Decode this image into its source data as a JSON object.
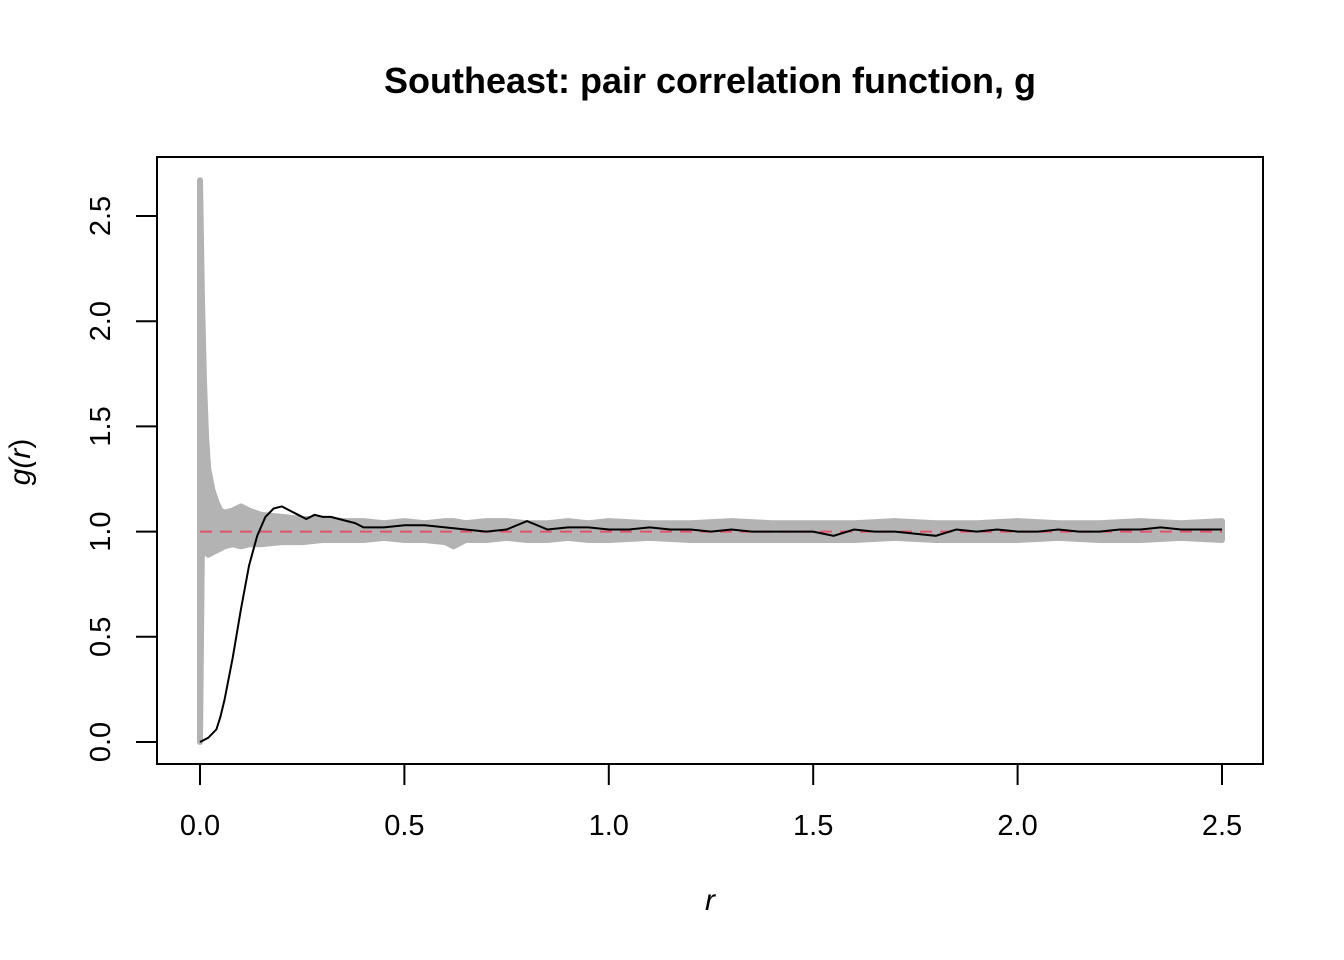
{
  "chart_data": {
    "type": "line",
    "title": "Southeast: pair correlation function, g",
    "xlabel_text": "r",
    "ylabel_prefix": "g(",
    "ylabel_var": "r",
    "ylabel_suffix": ")",
    "xlim": [
      0,
      2.5
    ],
    "ylim": [
      0,
      2.6
    ],
    "x_ticks": [
      "0.0",
      "0.5",
      "1.0",
      "1.5",
      "2.0",
      "2.5"
    ],
    "y_ticks": [
      "0.0",
      "0.5",
      "1.0",
      "1.5",
      "2.0",
      "2.5"
    ],
    "grid": false,
    "legend": "none",
    "colors": {
      "envelope": "#b3b3b3",
      "observed": "#000000",
      "theoretical": "#df536b"
    },
    "series": [
      {
        "key": "envelope",
        "style": "band",
        "x": [
          0.0,
          0.005,
          0.01,
          0.015,
          0.02,
          0.03,
          0.04,
          0.05,
          0.06,
          0.08,
          0.1,
          0.12,
          0.15,
          0.2,
          0.25,
          0.3,
          0.35,
          0.4,
          0.45,
          0.5,
          0.55,
          0.6,
          0.62,
          0.65,
          0.7,
          0.75,
          0.8,
          0.85,
          0.9,
          0.95,
          1.0,
          1.1,
          1.2,
          1.3,
          1.4,
          1.5,
          1.6,
          1.7,
          1.8,
          1.9,
          2.0,
          2.1,
          2.2,
          2.3,
          2.4,
          2.5
        ],
        "upper": [
          2.67,
          2.1,
          1.7,
          1.45,
          1.3,
          1.2,
          1.14,
          1.1,
          1.09,
          1.1,
          1.12,
          1.1,
          1.08,
          1.07,
          1.06,
          1.06,
          1.05,
          1.05,
          1.04,
          1.05,
          1.04,
          1.05,
          1.05,
          1.04,
          1.05,
          1.05,
          1.04,
          1.04,
          1.05,
          1.04,
          1.05,
          1.04,
          1.04,
          1.05,
          1.04,
          1.04,
          1.04,
          1.05,
          1.04,
          1.04,
          1.05,
          1.04,
          1.04,
          1.05,
          1.04,
          1.05
        ],
        "lower": [
          0.0,
          0.98,
          0.92,
          0.9,
          0.89,
          0.9,
          0.91,
          0.92,
          0.93,
          0.94,
          0.93,
          0.94,
          0.94,
          0.95,
          0.95,
          0.96,
          0.96,
          0.96,
          0.97,
          0.96,
          0.96,
          0.95,
          0.93,
          0.96,
          0.96,
          0.97,
          0.96,
          0.96,
          0.97,
          0.96,
          0.96,
          0.97,
          0.96,
          0.96,
          0.96,
          0.96,
          0.96,
          0.97,
          0.96,
          0.96,
          0.96,
          0.97,
          0.96,
          0.96,
          0.97,
          0.96
        ]
      },
      {
        "key": "theoretical",
        "style": "dashed",
        "x": [
          0.0,
          2.5
        ],
        "y": [
          1.0,
          1.0
        ]
      },
      {
        "key": "observed",
        "style": "solid",
        "x": [
          0.0,
          0.02,
          0.04,
          0.05,
          0.06,
          0.08,
          0.1,
          0.12,
          0.14,
          0.16,
          0.18,
          0.2,
          0.22,
          0.24,
          0.26,
          0.28,
          0.3,
          0.32,
          0.34,
          0.36,
          0.38,
          0.4,
          0.45,
          0.5,
          0.55,
          0.6,
          0.65,
          0.7,
          0.75,
          0.8,
          0.85,
          0.9,
          0.95,
          1.0,
          1.05,
          1.1,
          1.15,
          1.2,
          1.25,
          1.3,
          1.35,
          1.4,
          1.45,
          1.5,
          1.55,
          1.6,
          1.65,
          1.7,
          1.75,
          1.8,
          1.85,
          1.9,
          1.95,
          2.0,
          2.05,
          2.1,
          2.15,
          2.2,
          2.25,
          2.3,
          2.35,
          2.4,
          2.45,
          2.5
        ],
        "y": [
          0.0,
          0.02,
          0.06,
          0.12,
          0.2,
          0.4,
          0.63,
          0.84,
          0.98,
          1.07,
          1.11,
          1.12,
          1.1,
          1.08,
          1.06,
          1.08,
          1.07,
          1.07,
          1.06,
          1.05,
          1.04,
          1.02,
          1.02,
          1.03,
          1.03,
          1.02,
          1.01,
          1.0,
          1.01,
          1.05,
          1.01,
          1.02,
          1.02,
          1.01,
          1.01,
          1.02,
          1.01,
          1.01,
          1.0,
          1.01,
          1.0,
          1.0,
          1.0,
          1.0,
          0.98,
          1.01,
          1.0,
          1.0,
          0.99,
          0.98,
          1.01,
          1.0,
          1.01,
          1.0,
          1.0,
          1.01,
          1.0,
          1.0,
          1.01,
          1.01,
          1.02,
          1.01,
          1.01,
          1.01
        ]
      }
    ]
  }
}
